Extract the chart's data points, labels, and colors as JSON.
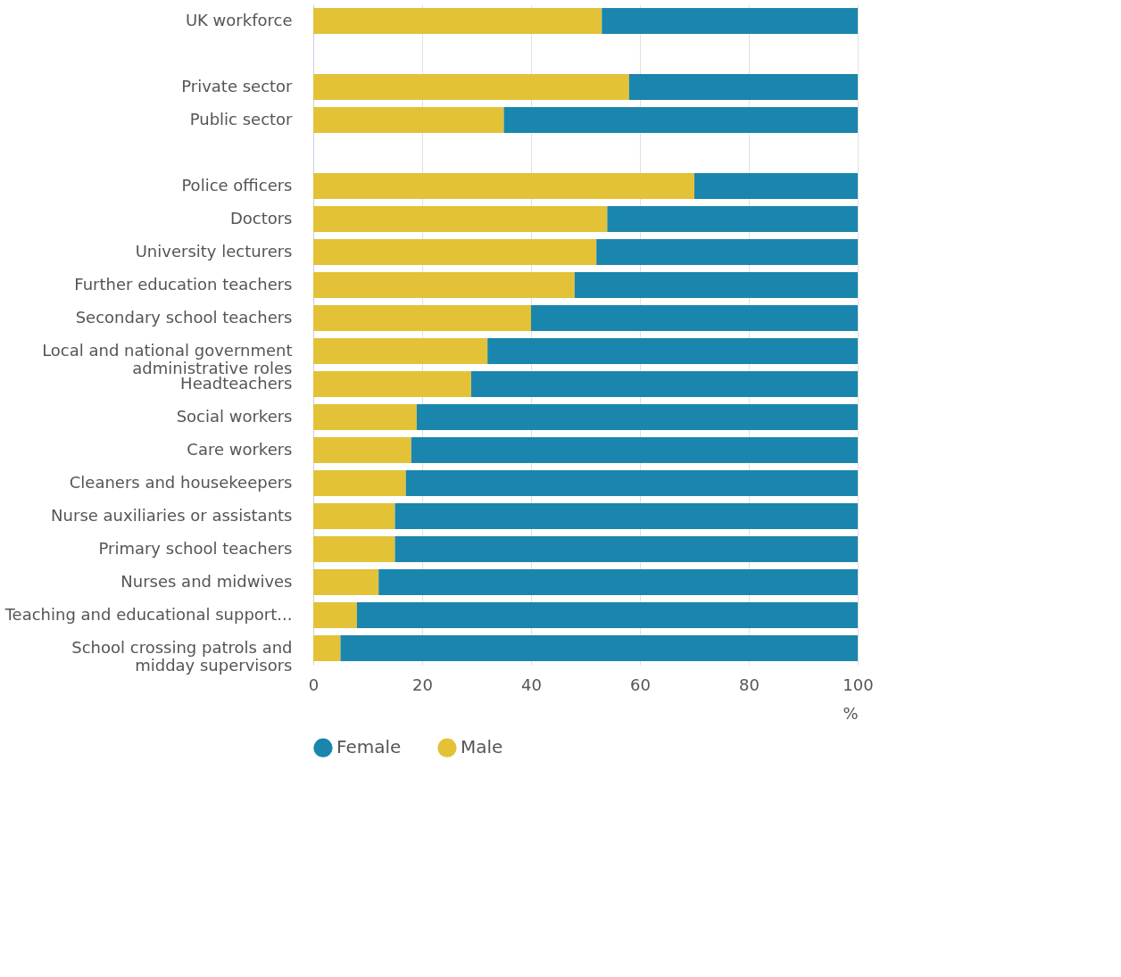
{
  "chart_data": {
    "type": "bar",
    "orientation": "horizontal",
    "stacked": true,
    "categories": [
      "UK workforce",
      null,
      "Private sector",
      "Public sector",
      null,
      "Police officers",
      "Doctors",
      "University lecturers",
      "Further education teachers",
      "Secondary school teachers",
      "Local and national government\nadministrative roles",
      "Headteachers",
      "Social workers",
      "Care workers",
      "Cleaners and housekeepers",
      "Nurse auxiliaries or assistants",
      "Primary school teachers",
      "Nurses and midwives",
      "Teaching and educational support...",
      "School crossing patrols and\nmidday supervisors"
    ],
    "series": [
      {
        "name": "Male",
        "color": "#e3c238",
        "values": [
          53,
          null,
          58,
          35,
          null,
          70,
          54,
          52,
          48,
          40,
          32,
          29,
          19,
          18,
          17,
          15,
          15,
          12,
          8,
          5
        ]
      },
      {
        "name": "Female",
        "color": "#1a86ad",
        "values": [
          47,
          null,
          42,
          65,
          null,
          30,
          46,
          48,
          52,
          60,
          68,
          71,
          81,
          82,
          83,
          85,
          85,
          88,
          92,
          95
        ]
      }
    ],
    "xlabel": "%",
    "xlim": [
      0,
      100
    ],
    "xticks": [
      0,
      20,
      40,
      60,
      80,
      100
    ],
    "grid": "x",
    "legend": "bottom left"
  }
}
